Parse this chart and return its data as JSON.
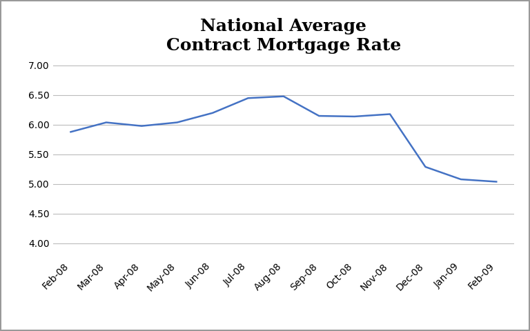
{
  "title": "National Average\nContract Mortgage Rate",
  "x_labels": [
    "Feb-08",
    "Mar-08",
    "Apr-08",
    "May-08",
    "Jun-08",
    "Jul-08",
    "Aug-08",
    "Sep-08",
    "Oct-08",
    "Nov-08",
    "Dec-08",
    "Jan-09",
    "Feb-09"
  ],
  "y_values": [
    5.88,
    6.04,
    5.98,
    6.04,
    6.2,
    6.45,
    6.48,
    6.15,
    6.14,
    6.18,
    5.29,
    5.08,
    5.04
  ],
  "line_color": "#4472C4",
  "line_width": 1.8,
  "ylim": [
    3.75,
    7.1
  ],
  "yticks": [
    4.0,
    4.5,
    5.0,
    5.5,
    6.0,
    6.5,
    7.0
  ],
  "title_fontsize": 18,
  "title_fontweight": "bold",
  "bg_color": "#ffffff",
  "grid_color": "#bbbbbb",
  "tick_label_fontsize": 10,
  "border_color": "#999999"
}
